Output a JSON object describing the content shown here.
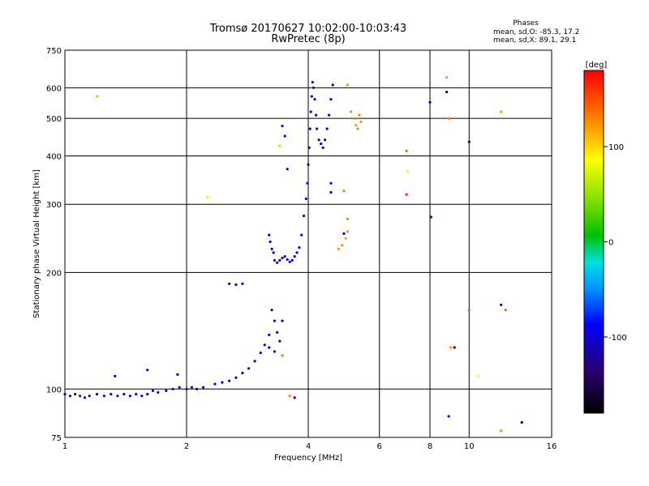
{
  "chart_data": {
    "type": "scatter",
    "title": "Tromsø 20170627 10:02:00-10:03:43",
    "subtitle": "RwPretec (8p)",
    "xlabel": "Frequency [MHz]",
    "ylabel": "Stationary phase Virtual Height [km]",
    "x_scale": "log",
    "y_scale": "log",
    "xlim": [
      1,
      16
    ],
    "ylim": [
      75,
      750
    ],
    "x_ticks": [
      1,
      2,
      4,
      6,
      8,
      10,
      16
    ],
    "x_tick_labels": [
      "1",
      "2",
      "4",
      "6",
      "8",
      "10",
      "16"
    ],
    "y_ticks": [
      75,
      100,
      200,
      300,
      400,
      500,
      600,
      750
    ],
    "y_tick_labels": [
      "75",
      "100",
      "200",
      "300",
      "400",
      "500",
      "600",
      "750"
    ],
    "grid": true,
    "phase_stats": {
      "header": "Phases",
      "line_o": "mean, sd,O: -85.3, 17.2",
      "line_x": "mean, sd,X:  89.1, 29.1"
    },
    "colorbar": {
      "label": "[deg]",
      "range": [
        -180,
        180
      ],
      "ticks": [
        100,
        0,
        -100
      ],
      "tick_labels": [
        "100",
        "0",
        "-100"
      ]
    },
    "series": [
      {
        "name": "ionogram echoes",
        "points": [
          [
            1.0,
            97,
            -110
          ],
          [
            1.03,
            96,
            -100
          ],
          [
            1.06,
            97,
            -105
          ],
          [
            1.09,
            96,
            -95
          ],
          [
            1.12,
            95,
            -105
          ],
          [
            1.15,
            96,
            -100
          ],
          [
            1.2,
            97,
            -110
          ],
          [
            1.25,
            96,
            -100
          ],
          [
            1.3,
            97,
            -105
          ],
          [
            1.35,
            96,
            -95
          ],
          [
            1.4,
            97,
            -100
          ],
          [
            1.45,
            96,
            -110
          ],
          [
            1.5,
            97,
            -100
          ],
          [
            1.55,
            96,
            -105
          ],
          [
            1.6,
            97,
            -95
          ],
          [
            1.65,
            99,
            -100
          ],
          [
            1.7,
            98,
            -110
          ],
          [
            1.78,
            99,
            -100
          ],
          [
            1.85,
            100,
            -105
          ],
          [
            1.92,
            101,
            -100
          ],
          [
            2.0,
            100,
            -95
          ],
          [
            2.06,
            101,
            -105
          ],
          [
            2.12,
            100,
            -100
          ],
          [
            2.2,
            101,
            -110
          ],
          [
            2.35,
            103,
            -100
          ],
          [
            2.45,
            104,
            -105
          ],
          [
            2.55,
            105,
            -95
          ],
          [
            2.65,
            107,
            -100
          ],
          [
            2.75,
            110,
            -105
          ],
          [
            2.85,
            113,
            -100
          ],
          [
            2.95,
            118,
            -110
          ],
          [
            3.05,
            124,
            -100
          ],
          [
            3.12,
            130,
            -105
          ],
          [
            3.2,
            138,
            -95
          ],
          [
            1.33,
            108,
            -110
          ],
          [
            1.6,
            112,
            -105
          ],
          [
            1.9,
            109,
            -100
          ],
          [
            2.55,
            187,
            -100
          ],
          [
            2.65,
            186,
            -105
          ],
          [
            2.75,
            187,
            -110
          ],
          [
            3.2,
            250,
            -100
          ],
          [
            3.22,
            240,
            -105
          ],
          [
            3.25,
            230,
            -110
          ],
          [
            3.28,
            225,
            -100
          ],
          [
            3.3,
            215,
            -105
          ],
          [
            3.35,
            212,
            -95
          ],
          [
            3.4,
            215,
            -100
          ],
          [
            3.45,
            218,
            -105
          ],
          [
            3.5,
            220,
            -110
          ],
          [
            3.55,
            216,
            -100
          ],
          [
            3.6,
            213,
            -105
          ],
          [
            3.65,
            215,
            -95
          ],
          [
            3.7,
            220,
            -100
          ],
          [
            3.75,
            225,
            -105
          ],
          [
            3.8,
            232,
            -110
          ],
          [
            3.85,
            250,
            -100
          ],
          [
            3.9,
            280,
            -105
          ],
          [
            3.95,
            310,
            -100
          ],
          [
            3.98,
            340,
            -95
          ],
          [
            4.0,
            380,
            -100
          ],
          [
            4.02,
            420,
            -105
          ],
          [
            4.04,
            470,
            -110
          ],
          [
            4.06,
            520,
            -100
          ],
          [
            4.08,
            570,
            -95
          ],
          [
            4.1,
            620,
            -105
          ],
          [
            4.12,
            600,
            -100
          ],
          [
            4.15,
            560,
            -110
          ],
          [
            4.18,
            510,
            -100
          ],
          [
            4.2,
            470,
            -105
          ],
          [
            4.25,
            440,
            -95
          ],
          [
            4.3,
            430,
            -100
          ],
          [
            4.35,
            420,
            -110
          ],
          [
            4.4,
            440,
            -105
          ],
          [
            4.45,
            470,
            -100
          ],
          [
            4.5,
            510,
            -95
          ],
          [
            4.55,
            560,
            -100
          ],
          [
            4.6,
            610,
            -105
          ],
          [
            3.25,
            160,
            -100
          ],
          [
            3.3,
            150,
            -110
          ],
          [
            3.35,
            140,
            -95
          ],
          [
            3.4,
            133,
            -100
          ],
          [
            3.45,
            150,
            -105
          ],
          [
            3.2,
            128,
            -110
          ],
          [
            3.3,
            125,
            -100
          ],
          [
            3.45,
            122,
            30
          ],
          [
            3.5,
            450,
            -100
          ],
          [
            3.4,
            425,
            60
          ],
          [
            3.55,
            370,
            -100
          ],
          [
            3.45,
            478,
            -95
          ],
          [
            2.25,
            313,
            80
          ],
          [
            1.2,
            570,
            110
          ],
          [
            4.75,
            230,
            120
          ],
          [
            4.85,
            235,
            125
          ],
          [
            4.95,
            245,
            120
          ],
          [
            5.0,
            255,
            125
          ],
          [
            5.0,
            275,
            130
          ],
          [
            4.9,
            325,
            130
          ],
          [
            5.0,
            610,
            125
          ],
          [
            5.1,
            520,
            125
          ],
          [
            5.2,
            500,
            130
          ],
          [
            5.25,
            480,
            120
          ],
          [
            5.3,
            470,
            125
          ],
          [
            5.35,
            510,
            130
          ],
          [
            5.4,
            490,
            120
          ],
          [
            4.55,
            340,
            -100
          ],
          [
            4.55,
            322,
            -120
          ],
          [
            4.9,
            252,
            -100
          ],
          [
            7.0,
            412,
            20
          ],
          [
            7.05,
            365,
            80
          ],
          [
            7.0,
            318,
            165
          ],
          [
            8.0,
            550,
            -100
          ],
          [
            8.05,
            278,
            -110
          ],
          [
            8.8,
            638,
            120
          ],
          [
            8.8,
            585,
            -150
          ],
          [
            8.9,
            500,
            130
          ],
          [
            8.9,
            85,
            -95
          ],
          [
            9.0,
            128,
            120
          ],
          [
            9.2,
            128,
            -110
          ],
          [
            10.0,
            435,
            -100
          ],
          [
            10.0,
            160,
            140
          ],
          [
            10.5,
            108,
            90
          ],
          [
            12.0,
            520,
            120
          ],
          [
            12.0,
            165,
            -160
          ],
          [
            12.3,
            160,
            145
          ],
          [
            12.0,
            78,
            125
          ],
          [
            13.5,
            82,
            -150
          ],
          [
            3.6,
            96,
            130
          ],
          [
            3.7,
            95,
            -100
          ]
        ]
      }
    ]
  }
}
